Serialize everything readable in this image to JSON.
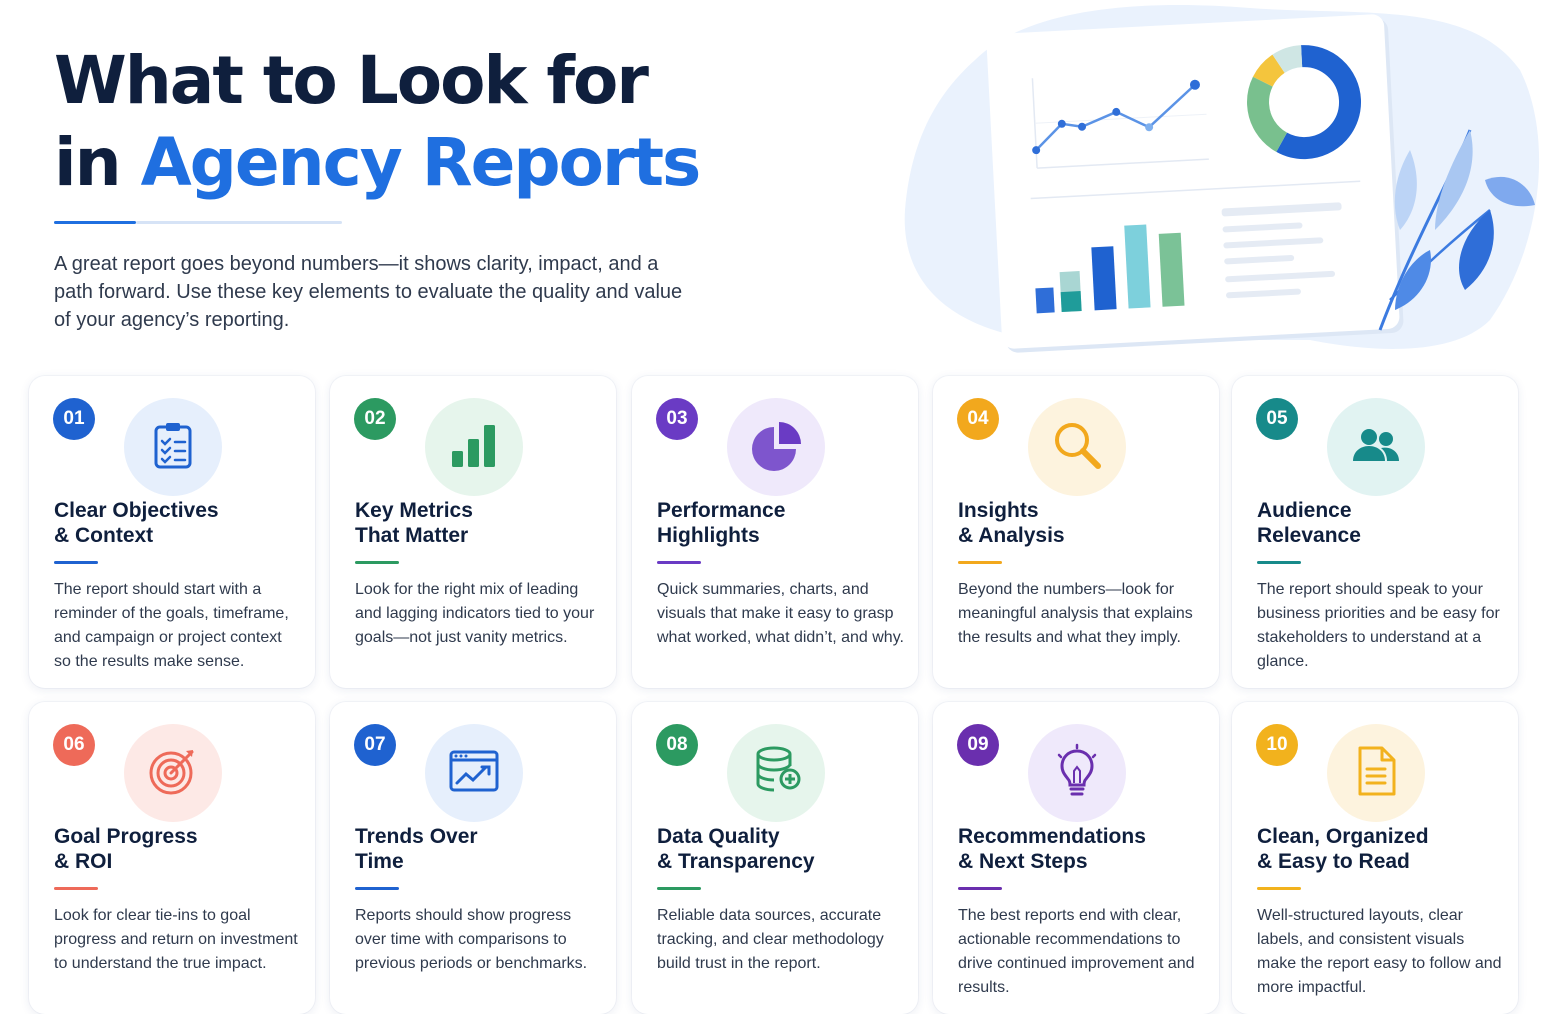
{
  "header": {
    "title_line1": "What to Look for",
    "title_line2_prefix": "in",
    "title_line2_accent": "Agency Reports",
    "intro": "A great report goes beyond numbers—it shows clarity, impact, and a path forward. Use these key elements to evaluate the quality and value of your agency’s reporting."
  },
  "colors": {
    "title": "#0f1f3d",
    "accent": "#1f6fe0"
  },
  "cards": [
    {
      "num": "01",
      "title1": "Clear Objectives",
      "title2": "& Context",
      "desc": "The report should start with a reminder of the goals, timeframe, and campaign or project context so the results make sense.",
      "icon": "clipboard-checklist-icon",
      "color": "#1f62d0",
      "tint": "#e6effc"
    },
    {
      "num": "02",
      "title1": "Key Metrics",
      "title2": "That Matter",
      "desc": "Look for the right mix of leading and lagging indicators tied to your goals—not just vanity metrics.",
      "icon": "bar-chart-icon",
      "color": "#2c9a61",
      "tint": "#e6f5ec"
    },
    {
      "num": "03",
      "title1": "Performance",
      "title2": "Highlights",
      "desc": "Quick summaries, charts, and visuals that make it easy to grasp what worked, what didn’t, and why.",
      "icon": "pie-chart-icon",
      "color": "#6a3bc4",
      "tint": "#efe9fb"
    },
    {
      "num": "04",
      "title1": "Insights",
      "title2": "& Analysis",
      "desc": "Beyond the numbers—look for meaningful analysis that explains the results and what they imply.",
      "icon": "magnifier-icon",
      "color": "#f2a81d",
      "tint": "#fdf3de"
    },
    {
      "num": "05",
      "title1": "Audience",
      "title2": "Relevance",
      "desc": "The report should speak to your business priorities and be easy for stakeholders to understand at a glance.",
      "icon": "people-icon",
      "color": "#178a8a",
      "tint": "#e1f3f2"
    },
    {
      "num": "06",
      "title1": "Goal Progress",
      "title2": "& ROI",
      "desc": "Look for clear tie-ins to goal progress and return on investment to understand the true impact.",
      "icon": "target-icon",
      "color": "#ee6a59",
      "tint": "#fde9e6"
    },
    {
      "num": "07",
      "title1": "Trends Over",
      "title2": "Time",
      "desc": "Reports should show progress over time with comparisons to previous periods or benchmarks.",
      "icon": "trend-window-icon",
      "color": "#1f62d0",
      "tint": "#e6effc"
    },
    {
      "num": "08",
      "title1": "Data Quality",
      "title2": "& Transparency",
      "desc": "Reliable data sources, accurate tracking, and clear methodology build trust in the report.",
      "icon": "database-icon",
      "color": "#2c9a61",
      "tint": "#e6f5ec"
    },
    {
      "num": "09",
      "title1": "Recommendations",
      "title2": "& Next Steps",
      "desc": "The best reports end with clear, actionable recommendations to drive continued improvement and results.",
      "icon": "lightbulb-icon",
      "color": "#6a2fae",
      "tint": "#efe9fb"
    },
    {
      "num": "10",
      "title1": "Clean, Organized",
      "title2": "& Easy to Read",
      "desc": "Well-structured layouts, clear labels, and consistent visuals make the report easy to follow and more impactful.",
      "icon": "document-icon",
      "color": "#f2b21d",
      "tint": "#fdf3de"
    }
  ]
}
